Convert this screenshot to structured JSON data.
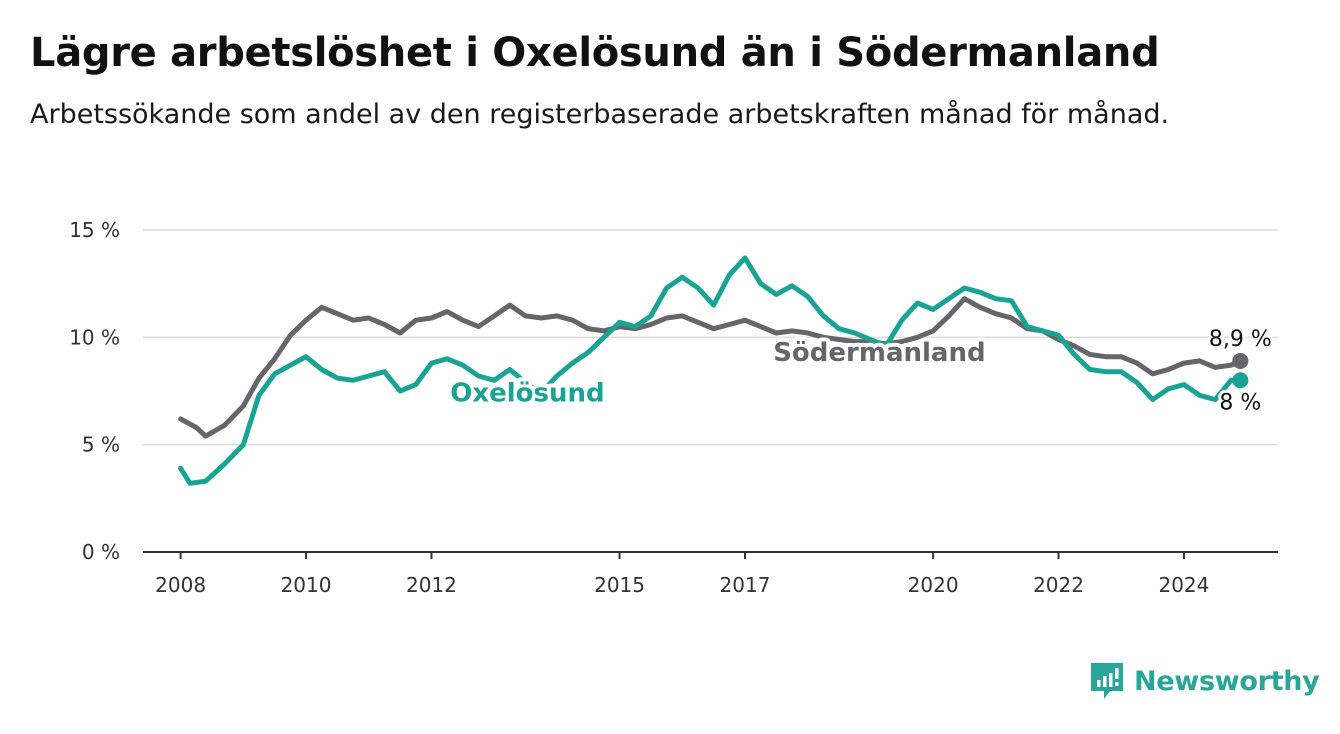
{
  "title": "Lägre arbetslöshet i Oxelösund än i Södermanland",
  "subtitle": "Arbetssökande som andel av den registerbaserade arbetskraften månad för månad.",
  "brand": {
    "name": "Newsworthy"
  },
  "colors": {
    "oxelosund": "#19a394",
    "sodermanland": "#666669",
    "grid": "#dddddd",
    "axis": "#333333"
  },
  "chart_data": {
    "type": "line",
    "xlabel": "",
    "ylabel": "",
    "ylim": [
      0,
      15
    ],
    "y_ticks": [
      0,
      5,
      10,
      15
    ],
    "y_tick_labels": [
      "0 %",
      "5 %",
      "10 %",
      "15 %"
    ],
    "x_ticks": [
      2008,
      2010,
      2012,
      2015,
      2017,
      2020,
      2022,
      2024
    ],
    "x_tick_labels": [
      "2008",
      "2010",
      "2012",
      "2015",
      "2017",
      "2020",
      "2022",
      "2024"
    ],
    "grid": true,
    "legend": "none (direct labels)",
    "series": [
      {
        "name": "Södermanland",
        "key": "sodermanland",
        "end_label": "8,9 %",
        "points": [
          [
            2008.0,
            6.2
          ],
          [
            2008.25,
            5.8
          ],
          [
            2008.4,
            5.4
          ],
          [
            2008.7,
            5.9
          ],
          [
            2009.0,
            6.8
          ],
          [
            2009.25,
            8.1
          ],
          [
            2009.5,
            9.0
          ],
          [
            2009.75,
            10.1
          ],
          [
            2010.0,
            10.8
          ],
          [
            2010.25,
            11.4
          ],
          [
            2010.5,
            11.1
          ],
          [
            2010.75,
            10.8
          ],
          [
            2011.0,
            10.9
          ],
          [
            2011.25,
            10.6
          ],
          [
            2011.5,
            10.2
          ],
          [
            2011.75,
            10.8
          ],
          [
            2012.0,
            10.9
          ],
          [
            2012.25,
            11.2
          ],
          [
            2012.5,
            10.8
          ],
          [
            2012.75,
            10.5
          ],
          [
            2013.0,
            11.0
          ],
          [
            2013.25,
            11.5
          ],
          [
            2013.5,
            11.0
          ],
          [
            2013.75,
            10.9
          ],
          [
            2014.0,
            11.0
          ],
          [
            2014.25,
            10.8
          ],
          [
            2014.5,
            10.4
          ],
          [
            2014.75,
            10.3
          ],
          [
            2015.0,
            10.5
          ],
          [
            2015.25,
            10.4
          ],
          [
            2015.5,
            10.6
          ],
          [
            2015.75,
            10.9
          ],
          [
            2016.0,
            11.0
          ],
          [
            2016.25,
            10.7
          ],
          [
            2016.5,
            10.4
          ],
          [
            2016.75,
            10.6
          ],
          [
            2017.0,
            10.8
          ],
          [
            2017.25,
            10.5
          ],
          [
            2017.5,
            10.2
          ],
          [
            2017.75,
            10.3
          ],
          [
            2018.0,
            10.2
          ],
          [
            2018.25,
            10.0
          ],
          [
            2018.5,
            9.9
          ],
          [
            2018.75,
            9.8
          ],
          [
            2019.0,
            9.8
          ],
          [
            2019.25,
            9.7
          ],
          [
            2019.5,
            9.8
          ],
          [
            2019.75,
            10.0
          ],
          [
            2020.0,
            10.3
          ],
          [
            2020.25,
            11.0
          ],
          [
            2020.5,
            11.8
          ],
          [
            2020.75,
            11.4
          ],
          [
            2021.0,
            11.1
          ],
          [
            2021.25,
            10.9
          ],
          [
            2021.5,
            10.4
          ],
          [
            2021.75,
            10.3
          ],
          [
            2022.0,
            9.9
          ],
          [
            2022.25,
            9.6
          ],
          [
            2022.5,
            9.2
          ],
          [
            2022.75,
            9.1
          ],
          [
            2023.0,
            9.1
          ],
          [
            2023.25,
            8.8
          ],
          [
            2023.5,
            8.3
          ],
          [
            2023.75,
            8.5
          ],
          [
            2024.0,
            8.8
          ],
          [
            2024.25,
            8.9
          ],
          [
            2024.5,
            8.6
          ],
          [
            2024.75,
            8.7
          ],
          [
            2024.9,
            8.9
          ]
        ]
      },
      {
        "name": "Oxelösund",
        "key": "oxelosund",
        "end_label": "8 %",
        "points": [
          [
            2008.0,
            3.9
          ],
          [
            2008.15,
            3.2
          ],
          [
            2008.4,
            3.3
          ],
          [
            2008.7,
            4.1
          ],
          [
            2009.0,
            5.0
          ],
          [
            2009.25,
            7.3
          ],
          [
            2009.5,
            8.3
          ],
          [
            2009.75,
            8.7
          ],
          [
            2010.0,
            9.1
          ],
          [
            2010.25,
            8.5
          ],
          [
            2010.5,
            8.1
          ],
          [
            2010.75,
            8.0
          ],
          [
            2011.0,
            8.2
          ],
          [
            2011.25,
            8.4
          ],
          [
            2011.5,
            7.5
          ],
          [
            2011.75,
            7.8
          ],
          [
            2012.0,
            8.8
          ],
          [
            2012.25,
            9.0
          ],
          [
            2012.5,
            8.7
          ],
          [
            2012.75,
            8.2
          ],
          [
            2013.0,
            8.0
          ],
          [
            2013.25,
            8.5
          ],
          [
            2013.5,
            7.9
          ],
          [
            2013.75,
            7.4
          ],
          [
            2014.0,
            8.2
          ],
          [
            2014.25,
            8.8
          ],
          [
            2014.5,
            9.3
          ],
          [
            2014.75,
            10.0
          ],
          [
            2015.0,
            10.7
          ],
          [
            2015.25,
            10.5
          ],
          [
            2015.5,
            11.0
          ],
          [
            2015.75,
            12.3
          ],
          [
            2016.0,
            12.8
          ],
          [
            2016.25,
            12.3
          ],
          [
            2016.5,
            11.5
          ],
          [
            2016.75,
            12.9
          ],
          [
            2017.0,
            13.7
          ],
          [
            2017.25,
            12.5
          ],
          [
            2017.5,
            12.0
          ],
          [
            2017.75,
            12.4
          ],
          [
            2018.0,
            11.9
          ],
          [
            2018.25,
            11.0
          ],
          [
            2018.5,
            10.4
          ],
          [
            2018.75,
            10.2
          ],
          [
            2019.0,
            9.9
          ],
          [
            2019.25,
            9.6
          ],
          [
            2019.5,
            10.8
          ],
          [
            2019.75,
            11.6
          ],
          [
            2020.0,
            11.3
          ],
          [
            2020.25,
            11.8
          ],
          [
            2020.5,
            12.3
          ],
          [
            2020.75,
            12.1
          ],
          [
            2021.0,
            11.8
          ],
          [
            2021.25,
            11.7
          ],
          [
            2021.5,
            10.5
          ],
          [
            2021.75,
            10.3
          ],
          [
            2022.0,
            10.1
          ],
          [
            2022.25,
            9.2
          ],
          [
            2022.5,
            8.5
          ],
          [
            2022.75,
            8.4
          ],
          [
            2023.0,
            8.4
          ],
          [
            2023.25,
            7.9
          ],
          [
            2023.5,
            7.1
          ],
          [
            2023.75,
            7.6
          ],
          [
            2024.0,
            7.8
          ],
          [
            2024.25,
            7.3
          ],
          [
            2024.5,
            7.1
          ],
          [
            2024.75,
            8.0
          ],
          [
            2024.9,
            8.0
          ]
        ]
      }
    ]
  }
}
